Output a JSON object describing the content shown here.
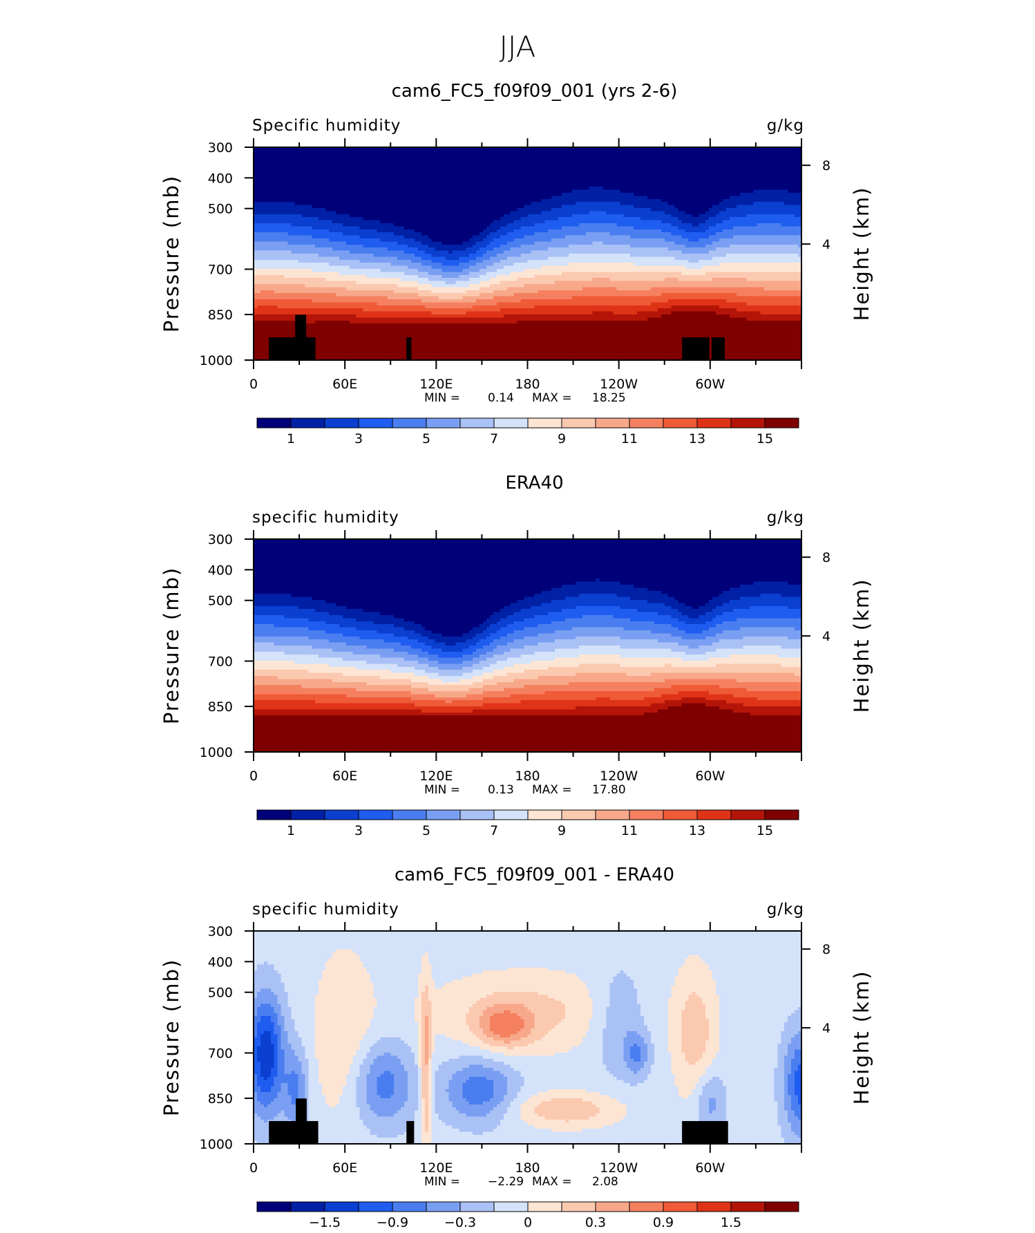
{
  "figure_title": "JJA",
  "chart_data": [
    {
      "type": "heatmap",
      "title": "cam6_FC5_f09f09_001 (yrs 2-6)",
      "left_label": "Specific humidity",
      "right_label": "g/kg",
      "ylabel": "Pressure (mb)",
      "ylabel_right": "Height (km)",
      "x_ticks": [
        "0",
        "60E",
        "120E",
        "180",
        "120W",
        "60W"
      ],
      "y_ticks": [
        "300",
        "400",
        "500",
        "700",
        "850",
        "1000"
      ],
      "y_ticks_right": [
        "8",
        "4"
      ],
      "stats": {
        "min_label": "MIN =",
        "min": "0.14",
        "max_label": "MAX =",
        "max": "18.25"
      },
      "colorbar_labels": [
        "1",
        "3",
        "5",
        "7",
        "9",
        "11",
        "13",
        "15"
      ],
      "range": [
        0.14,
        18.25
      ]
    },
    {
      "type": "heatmap",
      "title": "ERA40",
      "left_label": "specific humidity",
      "right_label": "g/kg",
      "ylabel": "Pressure (mb)",
      "ylabel_right": "Height (km)",
      "x_ticks": [
        "0",
        "60E",
        "120E",
        "180",
        "120W",
        "60W"
      ],
      "y_ticks": [
        "300",
        "400",
        "500",
        "700",
        "850",
        "1000"
      ],
      "y_ticks_right": [
        "8",
        "4"
      ],
      "stats": {
        "min_label": "MIN =",
        "min": "0.13",
        "max_label": "MAX =",
        "max": "17.80"
      },
      "colorbar_labels": [
        "1",
        "3",
        "5",
        "7",
        "9",
        "11",
        "13",
        "15"
      ],
      "range": [
        0.13,
        17.8
      ]
    },
    {
      "type": "heatmap",
      "title": "cam6_FC5_f09f09_001 - ERA40",
      "left_label": "specific humidity",
      "right_label": "g/kg",
      "ylabel": "Pressure (mb)",
      "ylabel_right": "Height (km)",
      "x_ticks": [
        "0",
        "60E",
        "120E",
        "180",
        "120W",
        "60W"
      ],
      "y_ticks": [
        "300",
        "400",
        "500",
        "700",
        "850",
        "1000"
      ],
      "y_ticks_right": [
        "8",
        "4"
      ],
      "stats": {
        "min_label": "MIN =",
        "min": "−2.29",
        "max_label": "MAX =",
        "max": "2.08"
      },
      "colorbar_labels": [
        "−1.5",
        "−0.9",
        "−0.3",
        "0",
        "0.3",
        "0.9",
        "1.5"
      ],
      "range": [
        -2.29,
        2.08
      ]
    }
  ],
  "colors": {
    "palette": [
      "#000079",
      "#0020a5",
      "#0a3fd0",
      "#1f5cf0",
      "#4a7ef0",
      "#7a9ff2",
      "#a9c1f5",
      "#d4e2fa",
      "#fde5d4",
      "#fbc9b0",
      "#f8a88a",
      "#f58060",
      "#ef5a37",
      "#df3318",
      "#b41508",
      "#7f0000"
    ]
  }
}
